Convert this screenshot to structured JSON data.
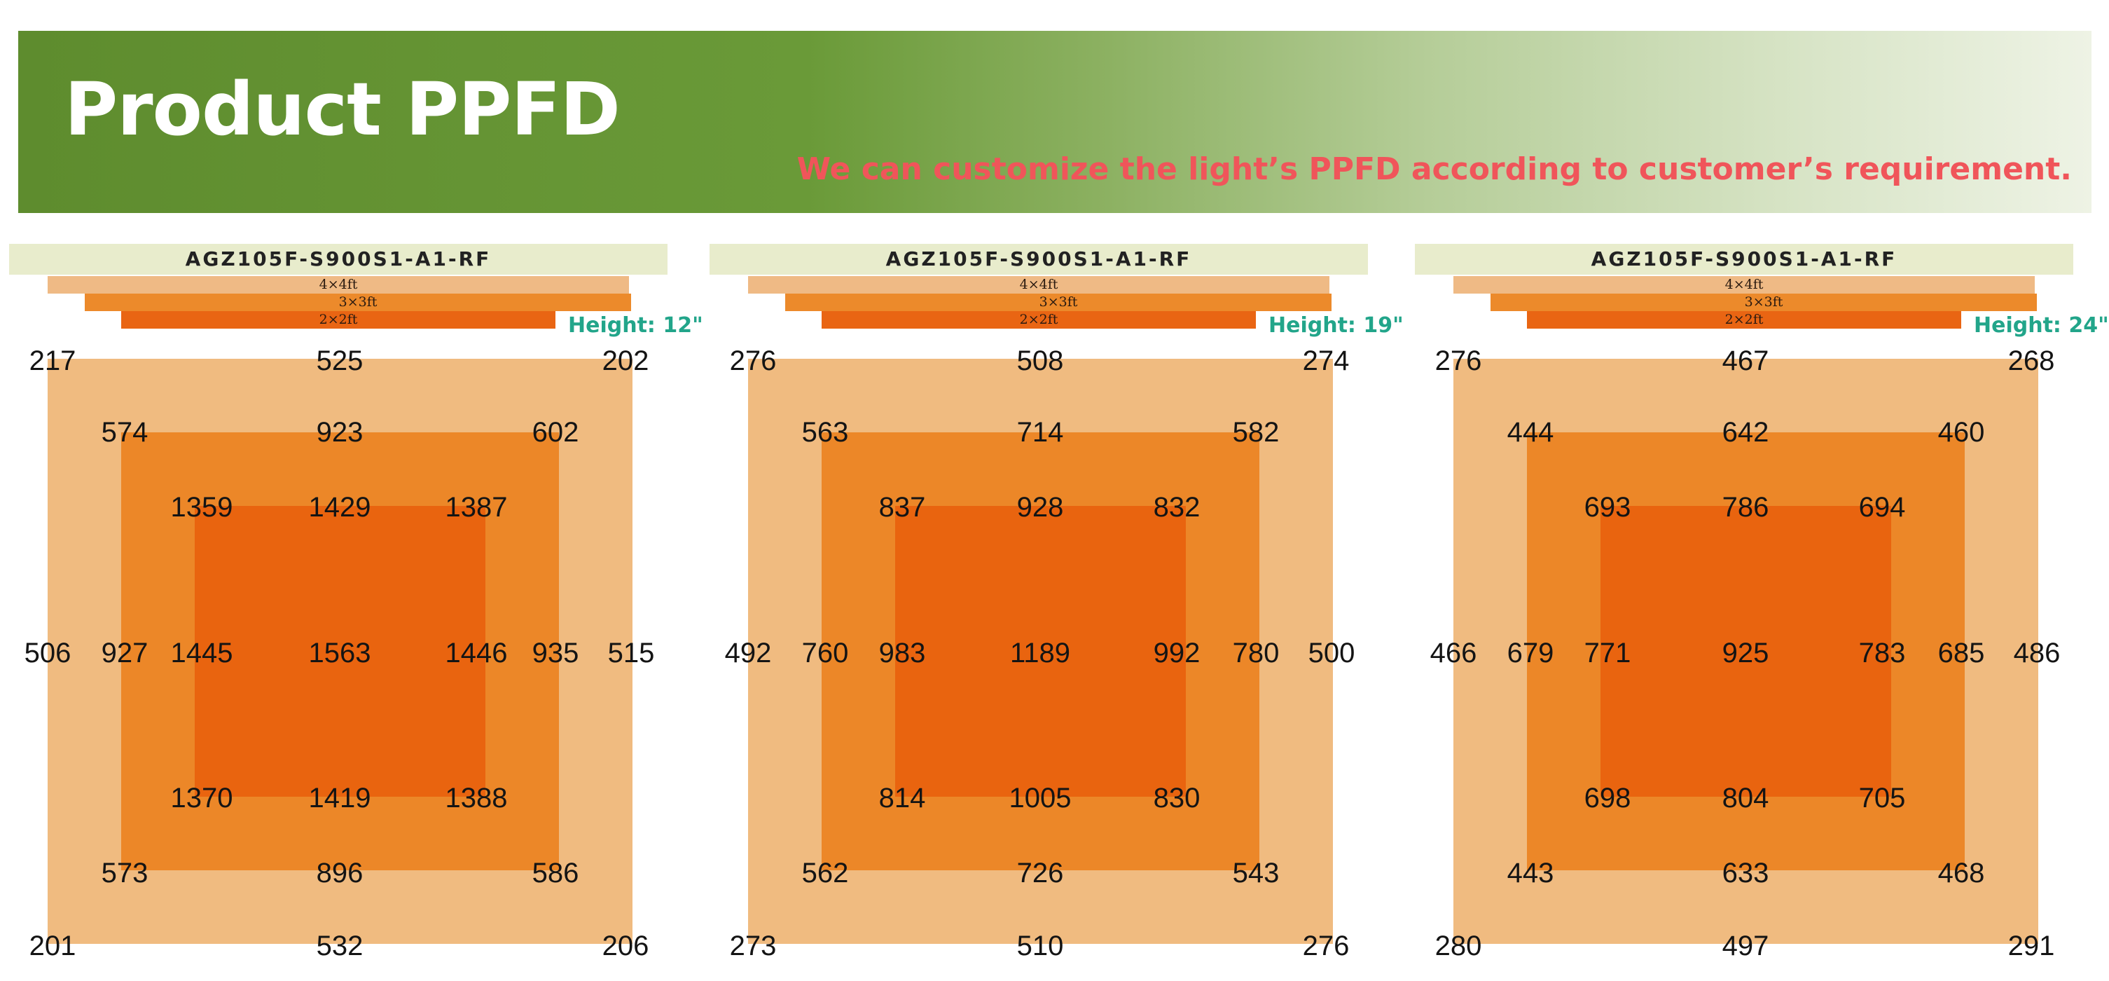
{
  "banner": {
    "title": "Product PPFD",
    "subtitle": "We can customize the light’s PPFD according to customer’s requirement."
  },
  "colors": {
    "banner_green": "#5e8c2e",
    "subtitle_red": "#f0555a",
    "height_teal": "#22a58a",
    "zone_4x4": "#f0bb80",
    "zone_3x3": "#ec8728",
    "zone_2x2": "#e9640f",
    "model_bar": "#e8eccc"
  },
  "panels": [
    {
      "model": "AGZ105F-S900S1-A1-RF",
      "sizes": {
        "s4": "4×4ft",
        "s3": "3×3ft",
        "s2": "2×2ft"
      },
      "height": "Height:  12\"",
      "grid": [
        [
          "217",
          "525",
          "202"
        ],
        [
          "574",
          "923",
          "602"
        ],
        [
          "1359",
          "1429",
          "1387"
        ],
        [
          "506",
          "927",
          "1445",
          "1563",
          "1446",
          "935",
          "515"
        ],
        [
          "1370",
          "1419",
          "1388"
        ],
        [
          "573",
          "896",
          "586"
        ],
        [
          "201",
          "532",
          "206"
        ]
      ]
    },
    {
      "model": "AGZ105F-S900S1-A1-RF",
      "sizes": {
        "s4": "4×4ft",
        "s3": "3×3ft",
        "s2": "2×2ft"
      },
      "height": "Height:  19\"",
      "grid": [
        [
          "276",
          "508",
          "274"
        ],
        [
          "563",
          "714",
          "582"
        ],
        [
          "837",
          "928",
          "832"
        ],
        [
          "492",
          "760",
          "983",
          "1189",
          "992",
          "780",
          "500"
        ],
        [
          "814",
          "1005",
          "830"
        ],
        [
          "562",
          "726",
          "543"
        ],
        [
          "273",
          "510",
          "276"
        ]
      ]
    },
    {
      "model": "AGZ105F-S900S1-A1-RF",
      "sizes": {
        "s4": "4×4ft",
        "s3": "3×3ft",
        "s2": "2×2ft"
      },
      "height": "Height:  24\"",
      "grid": [
        [
          "276",
          "467",
          "268"
        ],
        [
          "444",
          "642",
          "460"
        ],
        [
          "693",
          "786",
          "694"
        ],
        [
          "466",
          "679",
          "771",
          "925",
          "783",
          "685",
          "486"
        ],
        [
          "698",
          "804",
          "705"
        ],
        [
          "443",
          "633",
          "468"
        ],
        [
          "280",
          "497",
          "291"
        ]
      ]
    }
  ]
}
